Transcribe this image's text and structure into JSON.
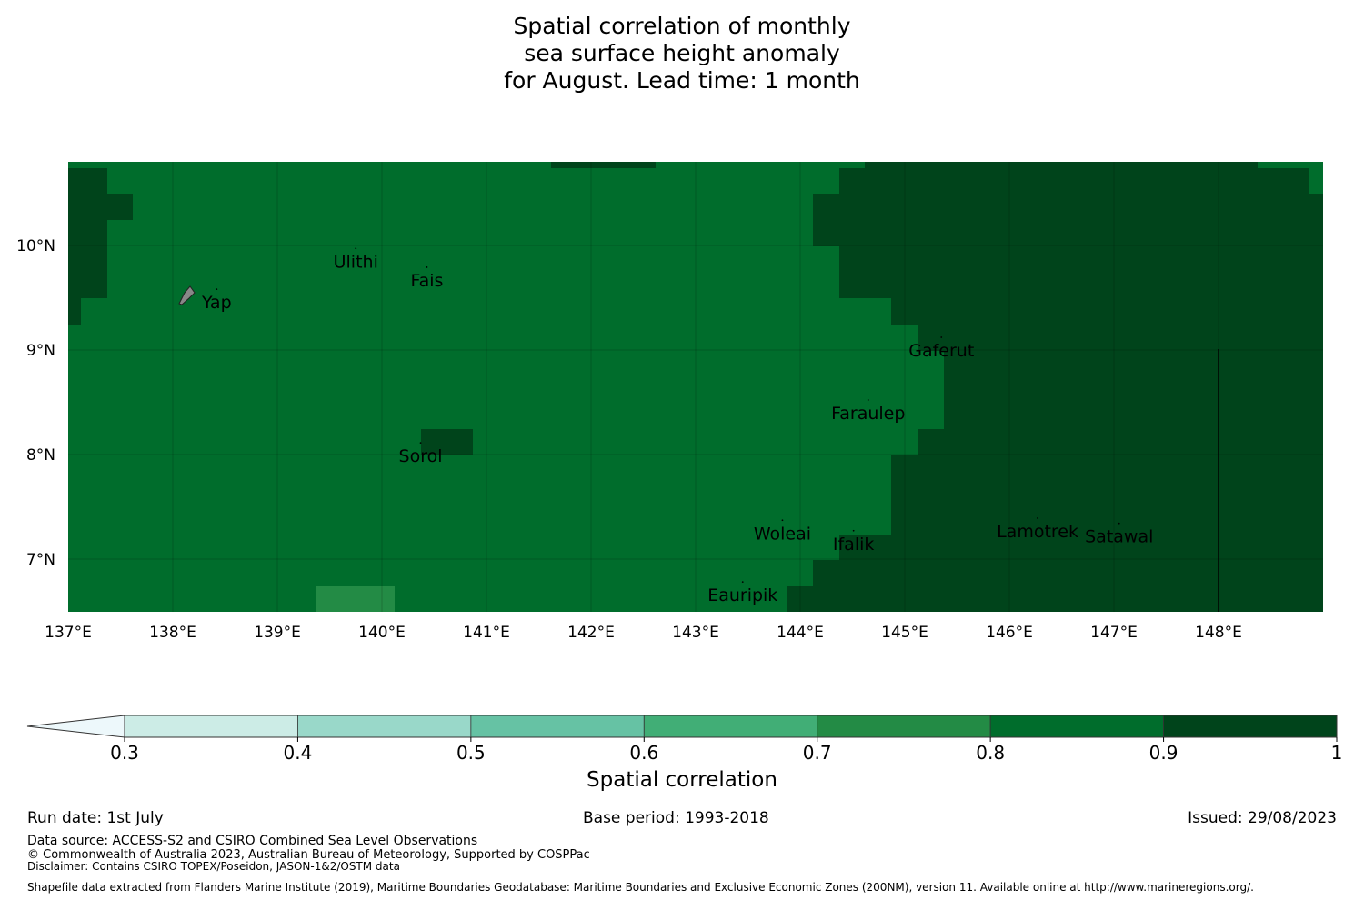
{
  "title": {
    "line1": "Spatial correlation of monthly",
    "line2": "sea surface height anomaly",
    "line3": "for August. Lead time: 1 month"
  },
  "map": {
    "lon_range": [
      137,
      149
    ],
    "lat_range": [
      6.5,
      10.8
    ],
    "x_ticks": [
      "137°E",
      "138°E",
      "139°E",
      "140°E",
      "141°E",
      "142°E",
      "143°E",
      "144°E",
      "145°E",
      "146°E",
      "147°E",
      "148°E"
    ],
    "y_ticks": [
      "10°N",
      "9°N",
      "8°N",
      "7°N"
    ],
    "colors": {
      "c07": "#238b45",
      "c08": "#006d2c",
      "c09": "#00441b",
      "land": "#888888"
    },
    "places": [
      {
        "name": "Ulithi",
        "lon": 139.75,
        "lat": 9.85
      },
      {
        "name": "Fais",
        "lon": 140.43,
        "lat": 9.67
      },
      {
        "name": "Yap",
        "lon": 138.42,
        "lat": 9.46
      },
      {
        "name": "Gaferut",
        "lon": 145.35,
        "lat": 9.0
      },
      {
        "name": "Faraulep",
        "lon": 144.65,
        "lat": 8.4
      },
      {
        "name": "Sorol",
        "lon": 140.37,
        "lat": 7.99
      },
      {
        "name": "Woleai",
        "lon": 143.83,
        "lat": 7.25
      },
      {
        "name": "Ifalik",
        "lon": 144.51,
        "lat": 7.15
      },
      {
        "name": "Lamotrek",
        "lon": 146.27,
        "lat": 7.27
      },
      {
        "name": "Satawal",
        "lon": 147.05,
        "lat": 7.22
      },
      {
        "name": "Eauripik",
        "lon": 143.45,
        "lat": 6.66
      }
    ]
  },
  "colorbar": {
    "label": "Spatial correlation",
    "ticks": [
      "0.3",
      "0.4",
      "0.5",
      "0.6",
      "0.7",
      "0.8",
      "0.9",
      "1"
    ],
    "colors": [
      "#edf8fb",
      "#ccece6",
      "#99d8c9",
      "#66c2a4",
      "#41ae76",
      "#238b45",
      "#006d2c",
      "#00441b"
    ]
  },
  "footer": {
    "run_date": "Run date: 1st July",
    "base_period": "Base period: 1993-2018",
    "issued": "Issued: 29/08/2023",
    "data_source": "Data source: ACCESS-S2 and CSIRO Combined Sea Level Observations",
    "copyright": "© Commonwealth of Australia 2023, Australian Bureau of Meteorology, Supported by COSPPac",
    "disclaimer": "Disclaimer: Contains CSIRO TOPEX/Poseidon, JASON-1&2/OSTM data",
    "shapefile": "Shapefile data extracted from Flanders Marine Institute (2019), Maritime Boundaries Geodatabase: Maritime Boundaries and Exclusive Economic Zones (200NM), version 11. Available online at http://www.marineregions.org/."
  }
}
